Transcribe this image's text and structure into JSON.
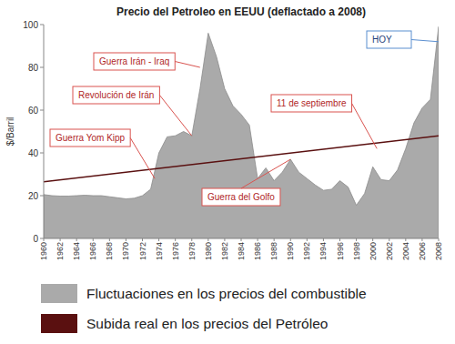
{
  "chart_data": {
    "type": "area",
    "title": "Precio del Petroleo en EEUU (deflactado a 2008)",
    "y_label": "$/Barril",
    "x": [
      1960,
      1961,
      1962,
      1963,
      1964,
      1965,
      1966,
      1967,
      1968,
      1969,
      1970,
      1971,
      1972,
      1973,
      1974,
      1975,
      1976,
      1977,
      1978,
      1979,
      1980,
      1981,
      1982,
      1983,
      1984,
      1985,
      1986,
      1987,
      1988,
      1989,
      1990,
      1991,
      1992,
      1993,
      1994,
      1995,
      1996,
      1997,
      1998,
      1999,
      2000,
      2001,
      2002,
      2003,
      2004,
      2005,
      2006,
      2007,
      2008
    ],
    "series": [
      {
        "name": "Fluctuaciones en los precios del combustible",
        "type": "area",
        "color": "#aaaaaa",
        "values": [
          20.5,
          20,
          19.8,
          19.8,
          20,
          20.2,
          20,
          20,
          19.5,
          19,
          18.5,
          18.8,
          20,
          23,
          40,
          47.5,
          48,
          50,
          48,
          70,
          96,
          85,
          70,
          62,
          58,
          53,
          28,
          33,
          27,
          31,
          37,
          31,
          28,
          25,
          22.5,
          23,
          27,
          24,
          15.5,
          21,
          33.5,
          27.5,
          27,
          32,
          42,
          54,
          61,
          65,
          99
        ]
      },
      {
        "name": "Subida real en los precios del Petróleo",
        "type": "line",
        "color": "#5a1010",
        "x": [
          1960,
          2008
        ],
        "values": [
          26.5,
          48
        ]
      }
    ],
    "annotations": [
      {
        "text": "Guerra Irán - Iraq",
        "x": 1979,
        "y": 80
      },
      {
        "text": "Revolución de Irán",
        "x": 1978,
        "y": 48
      },
      {
        "text": "Guerra Yom Kipp",
        "x": 1973.5,
        "y": 28
      },
      {
        "text": "11 de septiembre",
        "x": 2000.5,
        "y": 42
      },
      {
        "text": "Guerra del Golfo",
        "x": 1990,
        "y": 37
      },
      {
        "text": "HOY",
        "x": 2008,
        "y": 92
      }
    ],
    "xlim": [
      1960,
      2008
    ],
    "xticks": [
      1960,
      1962,
      1964,
      1966,
      1968,
      1970,
      1972,
      1974,
      1976,
      1978,
      1980,
      1982,
      1984,
      1986,
      1988,
      1990,
      1992,
      1994,
      1996,
      1998,
      2000,
      2002,
      2004,
      2006,
      2008
    ],
    "ylim": [
      0,
      100
    ],
    "yticks": [
      0,
      20,
      40,
      60,
      80,
      100
    ],
    "grid": false,
    "legend": "bottom"
  }
}
